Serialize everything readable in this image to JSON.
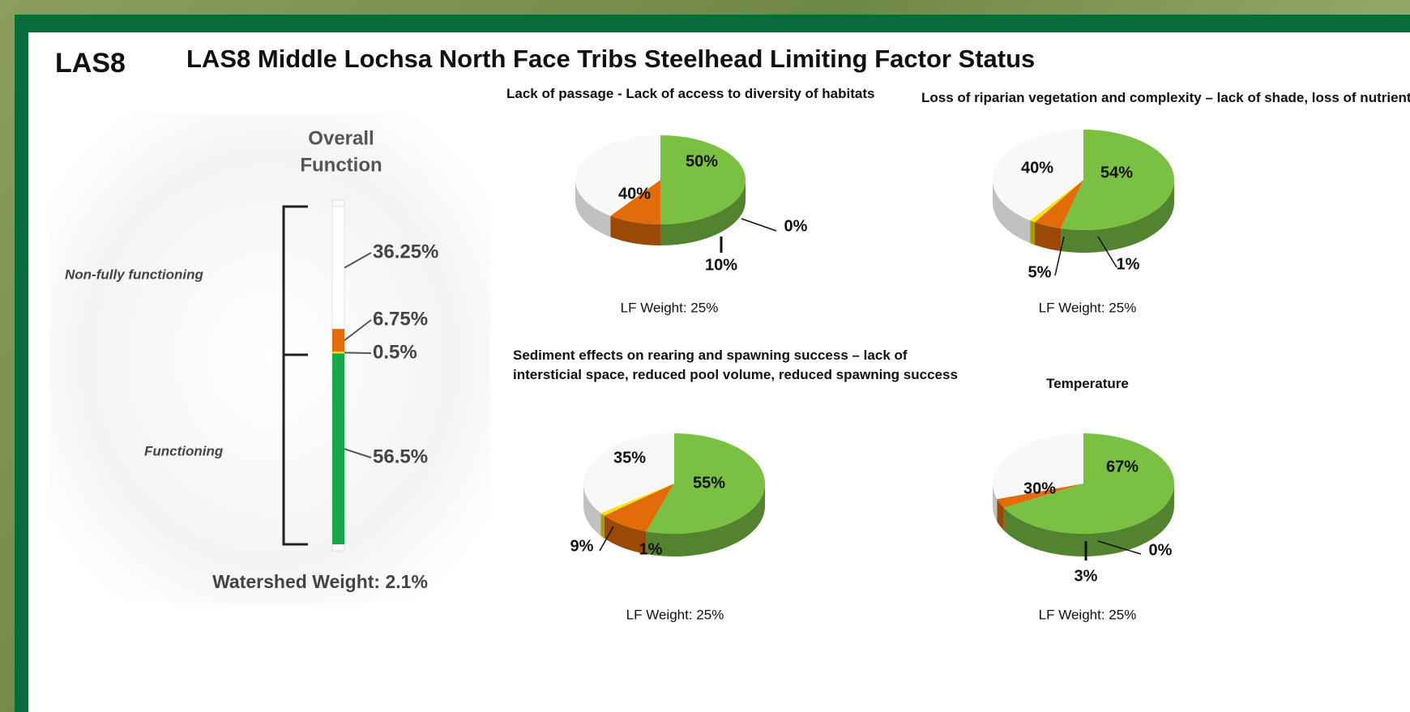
{
  "header": {
    "code": "LAS8",
    "title": "LAS8 Middle Lochsa North Face Tribs Steelhead Limiting Factor Status"
  },
  "chart_data": [
    {
      "type": "stacked-bar",
      "title_lines": [
        "Overall",
        "Function"
      ],
      "values": [
        36.25,
        6.75,
        0.5,
        56.5
      ],
      "value_labels": [
        "36.25%",
        "6.75%",
        "0.5%",
        "56.5%"
      ],
      "colors": [
        "#ffffff",
        "#e36c0a",
        "#f2e600",
        "#1aa64a"
      ],
      "ylim": [
        0,
        100
      ],
      "group_labels": [
        "Non-fully functioning",
        "Functioning"
      ],
      "footer": "Watershed Weight:  2.1%"
    },
    {
      "type": "pie",
      "title": "Lack of passage - Lack of access to diversity of habitats",
      "values": [
        50,
        10,
        0,
        40
      ],
      "value_labels": [
        "50%",
        "10%",
        "0%",
        "40%"
      ],
      "colors": [
        "#7ac143",
        "#e36c0a",
        "#f2e600",
        "#f8f8f8"
      ],
      "note": "LF Weight:  25%"
    },
    {
      "type": "pie",
      "title": "Loss of riparian vegetation and complexity – lack of shade, loss of nutrients",
      "values": [
        54,
        5,
        1,
        40
      ],
      "value_labels": [
        "54%",
        "5%",
        "1%",
        "40%"
      ],
      "colors": [
        "#7ac143",
        "#e36c0a",
        "#f2e600",
        "#f8f8f8"
      ],
      "note": "LF Weight:  25%"
    },
    {
      "type": "pie",
      "title": "Sediment effects on rearing and spawning success – lack of intersticial space, reduced pool volume, reduced spawning success",
      "values": [
        55,
        9,
        1,
        35
      ],
      "value_labels": [
        "55%",
        "9%",
        "1%",
        "35%"
      ],
      "colors": [
        "#7ac143",
        "#e36c0a",
        "#f2e600",
        "#f8f8f8"
      ],
      "note": "LF Weight:  25%"
    },
    {
      "type": "pie",
      "title": "Temperature",
      "values": [
        67,
        3,
        0,
        30
      ],
      "value_labels": [
        "67%",
        "3%",
        "0%",
        "30%"
      ],
      "colors": [
        "#7ac143",
        "#e36c0a",
        "#f2e600",
        "#f8f8f8"
      ],
      "note": "LF Weight:  25%"
    }
  ]
}
